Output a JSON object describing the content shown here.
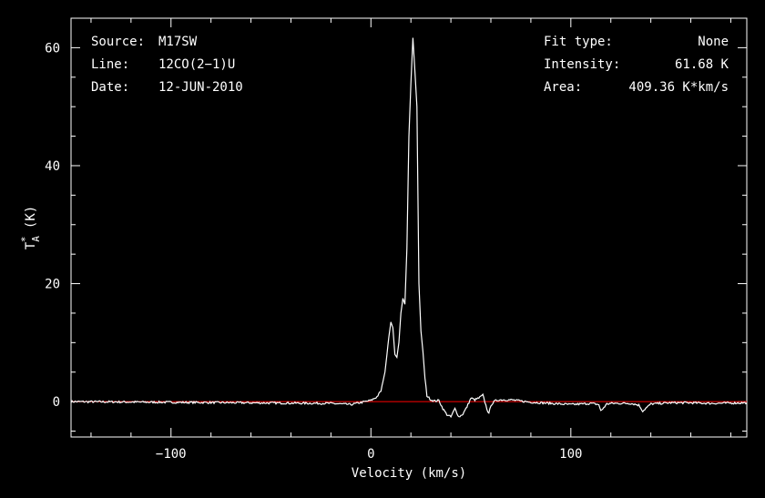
{
  "chart_data": {
    "type": "line",
    "xlabel": "Velocity (km/s)",
    "ylabel_main": "T",
    "ylabel_sub": "A",
    "ylabel_sup": "*",
    "ylabel_unit": " (K)",
    "xlim": [
      -150,
      188
    ],
    "ylim": [
      -6,
      65
    ],
    "xticks": [
      -100,
      0,
      100
    ],
    "xtick_labels": [
      "−100",
      "0",
      "100"
    ],
    "yticks": [
      0,
      20,
      40,
      60
    ],
    "ytick_labels": [
      "0",
      "20",
      "40",
      "60"
    ],
    "grid": false,
    "colors": {
      "background": "#000000",
      "axes": "#ffffff",
      "spectrum": "#ffffff",
      "baseline": "#ff0000"
    },
    "baseline_value": 0,
    "info_left": [
      {
        "key": "Source:",
        "value": "M17SW"
      },
      {
        "key": "Line:",
        "value": "12CO(2−1)U"
      },
      {
        "key": "Date:",
        "value": "12-JUN-2010"
      }
    ],
    "info_right": [
      {
        "key": "Fit type:",
        "value": "None"
      },
      {
        "key": "Intensity:",
        "value": "61.68 K"
      },
      {
        "key": "Area:",
        "value": "409.36 K*km/s"
      }
    ],
    "series": [
      {
        "x": [
          -150,
          -20,
          -10,
          0,
          3,
          5,
          7,
          9,
          10,
          11,
          12,
          13,
          14,
          15,
          16,
          17,
          18,
          19,
          20,
          21,
          22,
          23,
          24,
          25,
          26,
          27,
          28,
          30,
          32,
          34,
          36,
          38,
          40,
          42,
          44,
          46,
          48,
          50,
          52,
          54,
          56,
          58,
          59,
          60,
          62,
          64,
          70,
          80,
          90,
          100,
          110,
          114,
          115,
          116,
          118,
          120,
          130,
          134,
          136,
          138,
          140,
          150,
          160,
          170,
          188
        ],
        "y": [
          0,
          -0.3,
          -0.5,
          0.2,
          0.8,
          1.8,
          5,
          11,
          13.5,
          12.5,
          8,
          7.5,
          10,
          15,
          17.5,
          16.5,
          26,
          45,
          54,
          61.68,
          56,
          50,
          20,
          12,
          8.5,
          4,
          1,
          0.3,
          0.1,
          0.2,
          -1.2,
          -2.2,
          -2.6,
          -1.2,
          -2.6,
          -2.1,
          -0.9,
          0.6,
          0.3,
          0.6,
          1.1,
          -1.2,
          -2.1,
          -0.6,
          0.1,
          0.3,
          0.3,
          -0.1,
          -0.3,
          -0.5,
          -0.3,
          -0.5,
          -1.6,
          -1.2,
          -0.4,
          -0.3,
          -0.3,
          -0.6,
          -1.6,
          -1,
          -0.4,
          -0.2,
          -0.2,
          -0.3,
          -0.2
        ]
      }
    ]
  }
}
